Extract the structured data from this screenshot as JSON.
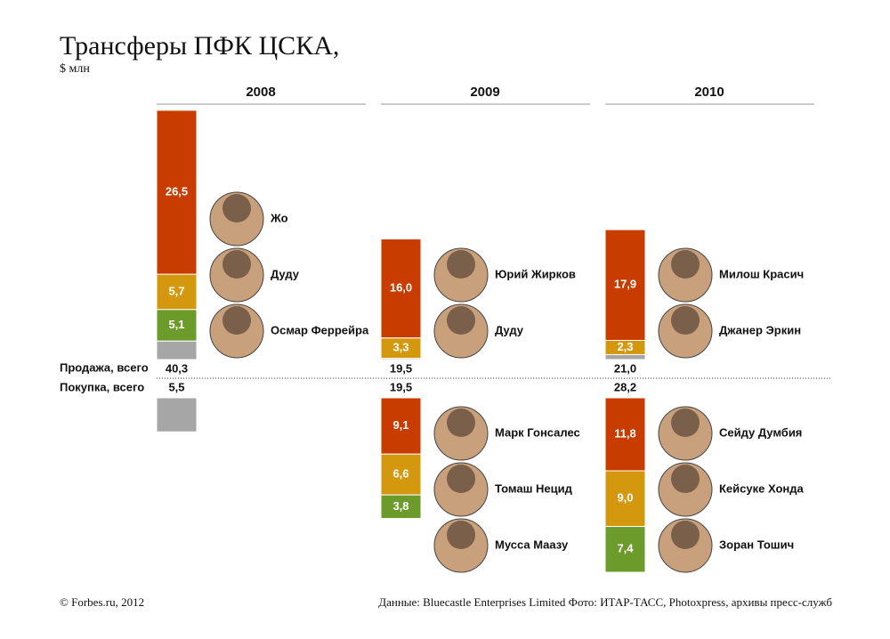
{
  "chart_data": {
    "type": "diverging-stacked-bar",
    "title": "Трансферы ПФК ЦСКА,",
    "subtitle": "$ млн",
    "sales_label": "Продажа, всего",
    "purchases_label": "Покупка, всего",
    "years": [
      {
        "year": "2008",
        "sales_total": "40,3",
        "purchases_total": "5,5",
        "sales": [
          {
            "value": 26.5,
            "value_label": "26,5",
            "color": "#c83c00",
            "player": "Жо"
          },
          {
            "value": 5.7,
            "value_label": "5,7",
            "color": "#d4980f",
            "player": "Дуду"
          },
          {
            "value": 5.1,
            "value_label": "5,1",
            "color": "#6c9a2b",
            "player": "Осмар Феррейра"
          },
          {
            "value": 3.0,
            "color": "#a6a6a6"
          }
        ],
        "purchases": [
          {
            "value": 5.5,
            "color": "#a6a6a6"
          }
        ]
      },
      {
        "year": "2009",
        "sales_total": "19,5",
        "purchases_total": "19,5",
        "sales": [
          {
            "value": 16.0,
            "value_label": "16,0",
            "color": "#c83c00",
            "player": "Юрий Жирков"
          },
          {
            "value": 3.3,
            "value_label": "3,3",
            "color": "#d4980f",
            "player": "Дуду"
          },
          {
            "value": 0.2,
            "color": "#a6a6a6"
          }
        ],
        "purchases": [
          {
            "value": 9.1,
            "value_label": "9,1",
            "color": "#c83c00",
            "player": "Марк Гонсалес"
          },
          {
            "value": 6.6,
            "value_label": "6,6",
            "color": "#d4980f",
            "player": "Томаш Нецид"
          },
          {
            "value": 3.8,
            "value_label": "3,8",
            "color": "#6c9a2b",
            "player": "Мусса Маазу"
          }
        ]
      },
      {
        "year": "2010",
        "sales_total": "21,0",
        "purchases_total": "28,2",
        "sales": [
          {
            "value": 17.9,
            "value_label": "17,9",
            "color": "#c83c00",
            "player": "Милош Красич"
          },
          {
            "value": 2.3,
            "value_label": "2,3",
            "color": "#d4980f",
            "player": "Джанер Эркин"
          },
          {
            "value": 0.8,
            "color": "#a6a6a6"
          }
        ],
        "purchases": [
          {
            "value": 11.8,
            "value_label": "11,8",
            "color": "#c83c00",
            "player": "Сейду Думбия"
          },
          {
            "value": 9.0,
            "value_label": "9,0",
            "color": "#d4980f",
            "player": "Кейсуке Хонда"
          },
          {
            "value": 7.4,
            "value_label": "7,4",
            "color": "#6c9a2b",
            "player": "Зоран Тошич"
          }
        ]
      }
    ],
    "credit": "© Forbes.ru, 2012",
    "source": "Данные: Bluecastle Enterprises Limited Фото: ИТАР-ТАСС, Photoxpress, архивы пресс-служб"
  }
}
